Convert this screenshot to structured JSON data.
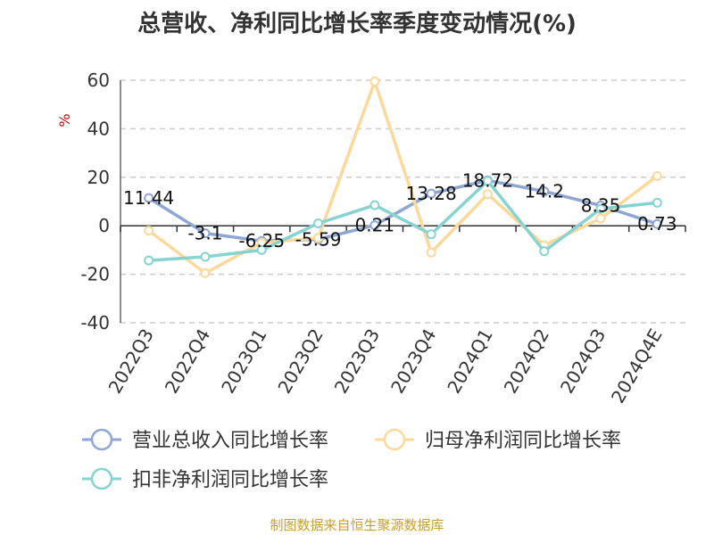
{
  "chart_data": {
    "type": "line",
    "title": "总营收、净利同比增长率季度变动情况(%)",
    "ylabel": "%",
    "xlabel": "",
    "categories": [
      "2022Q3",
      "2022Q4",
      "2023Q1",
      "2023Q2",
      "2023Q3",
      "2023Q4",
      "2024Q1",
      "2024Q2",
      "2024Q3",
      "2024Q4E"
    ],
    "ylim": [
      -40,
      60
    ],
    "yticks": [
      -40,
      -20,
      0,
      20,
      40,
      60
    ],
    "grid": true,
    "legend_position": "bottom",
    "series": [
      {
        "name": "营业总收入同比增长率",
        "color": "#8ea6d4",
        "values": [
          11.44,
          -3.1,
          -6.25,
          -5.59,
          0.21,
          13.28,
          18.72,
          14.2,
          8.35,
          0.73
        ],
        "labels": [
          "11.44",
          "-3.1",
          "-6.25",
          "-5.59",
          "0.21",
          "13.28",
          "18.72",
          "14.2",
          "8.35",
          "0.73"
        ]
      },
      {
        "name": "归母净利润同比增长率",
        "color": "#fcd99a",
        "values": [
          -2,
          -19.5,
          -7,
          -5,
          59.5,
          -11,
          13,
          -8,
          3,
          20.5
        ]
      },
      {
        "name": "扣非净利润同比增长率",
        "color": "#86d3d2",
        "values": [
          -14.3,
          -12.8,
          -10,
          1,
          8.5,
          -3.5,
          18.5,
          -10.5,
          7,
          9.5
        ]
      }
    ]
  },
  "footer": {
    "source": "制图数据来自恒生聚源数据库"
  }
}
